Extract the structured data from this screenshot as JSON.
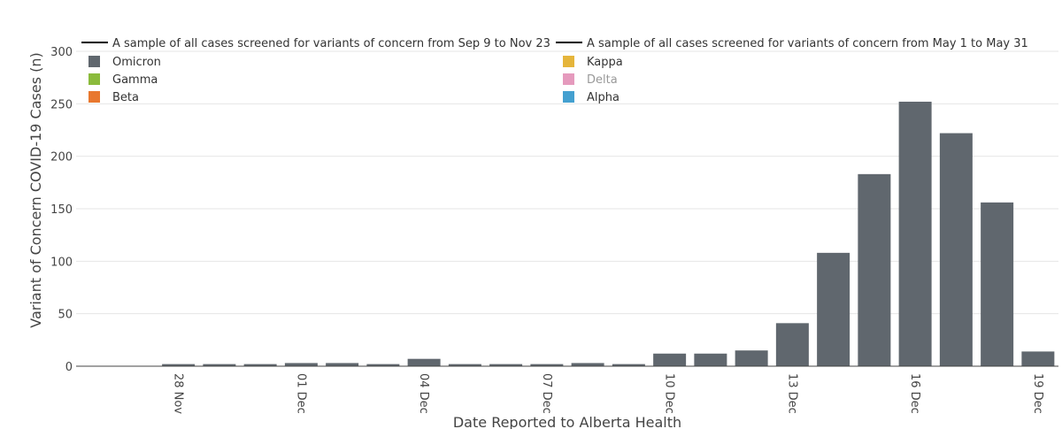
{
  "chart_data": {
    "type": "bar",
    "xlabel": "Date Reported to Alberta Health",
    "ylabel": "Variant of Concern COVID-19 Cases (n)",
    "ylim": [
      0,
      300
    ],
    "yticks": [
      0,
      50,
      100,
      150,
      200,
      250,
      300
    ],
    "x_start": "2021-11-26",
    "x_end": "2021-12-20",
    "xtick_dates": [
      "2021-11-28",
      "2021-12-01",
      "2021-12-04",
      "2021-12-07",
      "2021-12-10",
      "2021-12-13",
      "2021-12-16",
      "2021-12-19"
    ],
    "xtick_labels": [
      "28 Nov",
      "01 Dec",
      "04 Dec",
      "07 Dec",
      "10 Dec",
      "13 Dec",
      "16 Dec",
      "19 Dec"
    ],
    "grid": true,
    "legend_position": "top",
    "series": [
      {
        "name": "Omicron",
        "color": "#60676e",
        "points": [
          {
            "date": "2021-11-26",
            "value": 0
          },
          {
            "date": "2021-11-27",
            "value": 0
          },
          {
            "date": "2021-11-28",
            "value": 2
          },
          {
            "date": "2021-11-29",
            "value": 2
          },
          {
            "date": "2021-11-30",
            "value": 2
          },
          {
            "date": "2021-12-01",
            "value": 3
          },
          {
            "date": "2021-12-02",
            "value": 3
          },
          {
            "date": "2021-12-03",
            "value": 2
          },
          {
            "date": "2021-12-04",
            "value": 7
          },
          {
            "date": "2021-12-05",
            "value": 2
          },
          {
            "date": "2021-12-06",
            "value": 2
          },
          {
            "date": "2021-12-07",
            "value": 2
          },
          {
            "date": "2021-12-08",
            "value": 3
          },
          {
            "date": "2021-12-09",
            "value": 2
          },
          {
            "date": "2021-12-10",
            "value": 12
          },
          {
            "date": "2021-12-11",
            "value": 12
          },
          {
            "date": "2021-12-12",
            "value": 15
          },
          {
            "date": "2021-12-13",
            "value": 41
          },
          {
            "date": "2021-12-14",
            "value": 108
          },
          {
            "date": "2021-12-15",
            "value": 183
          },
          {
            "date": "2021-12-16",
            "value": 252
          },
          {
            "date": "2021-12-17",
            "value": 222
          },
          {
            "date": "2021-12-18",
            "value": 156
          },
          {
            "date": "2021-12-19",
            "value": 14
          }
        ]
      }
    ],
    "legend": [
      {
        "label": "A sample of all cases screened for variants of concern from Sep 9 to Nov 23",
        "kind": "line",
        "color": "#000000",
        "dim": false
      },
      {
        "label": "A sample of all cases screened for variants of concern from May 1 to May 31",
        "kind": "line",
        "color": "#000000",
        "dim": false
      },
      {
        "label": "Omicron",
        "kind": "box",
        "color": "#60676e",
        "dim": false
      },
      {
        "label": "Kappa",
        "kind": "box",
        "color": "#e5b53b",
        "dim": false
      },
      {
        "label": "Gamma",
        "kind": "box",
        "color": "#8bbb3c",
        "dim": false
      },
      {
        "label": "Delta",
        "kind": "box",
        "color": "#e59abd",
        "dim": true
      },
      {
        "label": "Beta",
        "kind": "box",
        "color": "#e8782f",
        "dim": false
      },
      {
        "label": "Alpha",
        "kind": "box",
        "color": "#44a0d0",
        "dim": false
      }
    ]
  }
}
